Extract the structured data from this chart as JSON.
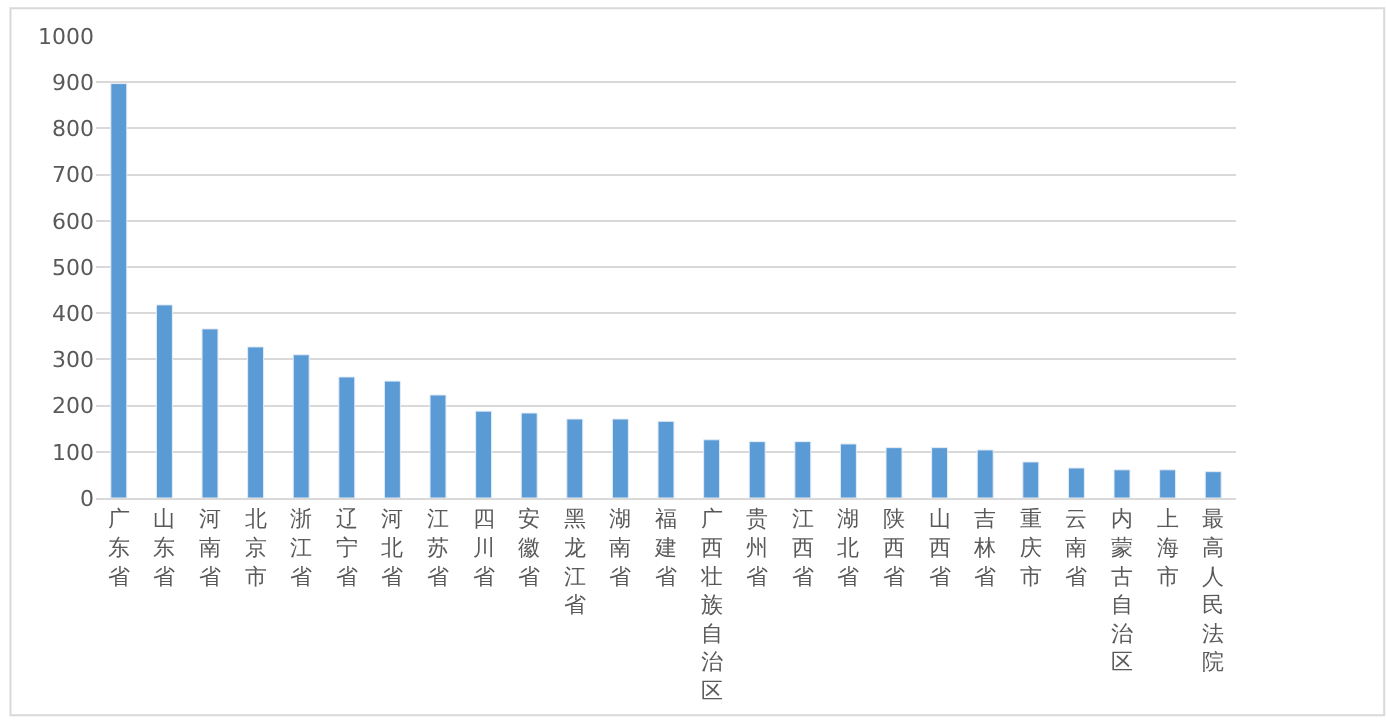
{
  "chart_data": {
    "type": "bar",
    "categories": [
      "广东省",
      "山东省",
      "河南省",
      "北京市",
      "浙江省",
      "辽宁省",
      "河北省",
      "江苏省",
      "四川省",
      "安徽省",
      "黑龙江省",
      "湖南省",
      "福建省",
      "广西壮族自治区",
      "贵州省",
      "江西省",
      "湖北省",
      "陕西省",
      "山西省",
      "吉林省",
      "重庆市",
      "云南省",
      "内蒙古自治区",
      "上海市",
      "最高人民法院"
    ],
    "values": [
      897,
      418,
      366,
      327,
      310,
      262,
      253,
      223,
      188,
      184,
      171,
      171,
      166,
      126,
      122,
      122,
      117,
      109,
      109,
      104,
      78,
      65,
      61,
      61,
      57
    ],
    "color": "#5b9bd5",
    "ylim": [
      0,
      1000
    ],
    "yticks": [
      0,
      100,
      200,
      300,
      400,
      500,
      600,
      700,
      800,
      900,
      1000
    ],
    "grid": "y"
  }
}
